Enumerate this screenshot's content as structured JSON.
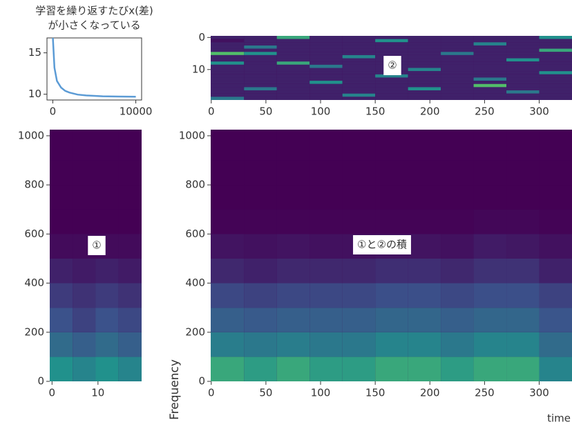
{
  "chart_data": [
    {
      "type": "line",
      "title": [
        "学習を繰り返すたびx(差)",
        "が小さくなっている"
      ],
      "x": [
        0,
        200,
        500,
        1000,
        1500,
        2000,
        3000,
        4000,
        6000,
        8000,
        10000
      ],
      "values": [
        17,
        13.2,
        11.6,
        10.8,
        10.4,
        10.2,
        9.95,
        9.85,
        9.75,
        9.72,
        9.7
      ],
      "color": "#5b9bd5",
      "xlim": [
        -700,
        10700
      ],
      "xticks": [
        0,
        10000
      ],
      "ylim": [
        9.3,
        16.8
      ],
      "yticks": [
        10,
        15
      ]
    },
    {
      "type": "heatmap",
      "annotation": "②",
      "colormap": "viridis",
      "xlim": [
        -0.5,
        330
      ],
      "ylim": [
        19.5,
        -0.5
      ],
      "xticks": [
        0,
        50,
        100,
        150,
        200,
        250,
        300
      ],
      "yticks": [
        0,
        10
      ],
      "x_bins": [
        -0.5,
        30,
        60,
        90,
        120,
        150,
        180,
        210,
        240,
        270,
        300,
        330
      ],
      "y_bins": [
        -0.5,
        0.5,
        1.5,
        2.5,
        3.5,
        4.5,
        5.5,
        6.5,
        7.5,
        8.5,
        9.5,
        10.5,
        11.5,
        12.5,
        13.5,
        14.5,
        15.5,
        16.5,
        17.5,
        18.5,
        19.5
      ],
      "z": [
        [
          0.1,
          0.1,
          0.6,
          0.1,
          0.1,
          0.1,
          0.1,
          0.1,
          0.1,
          0.1,
          0.5
        ],
        [
          0.05,
          0.1,
          0.1,
          0.1,
          0.1,
          0.5,
          0.1,
          0.1,
          0.1,
          0.1,
          0.1
        ],
        [
          0.1,
          0.1,
          0.1,
          0.1,
          0.1,
          0.1,
          0.1,
          0.1,
          0.45,
          0.1,
          0.1
        ],
        [
          0.1,
          0.4,
          0.1,
          0.1,
          0.1,
          0.1,
          0.1,
          0.1,
          0.1,
          0.1,
          0.1
        ],
        [
          0.1,
          0.1,
          0.1,
          0.1,
          0.1,
          0.1,
          0.1,
          0.1,
          0.1,
          0.1,
          0.6
        ],
        [
          0.7,
          0.5,
          0.1,
          0.1,
          0.1,
          0.1,
          0.1,
          0.4,
          0.1,
          0.1,
          0.1
        ],
        [
          0.1,
          0.1,
          0.1,
          0.1,
          0.45,
          0.1,
          0.1,
          0.1,
          0.1,
          0.1,
          0.1
        ],
        [
          0.1,
          0.1,
          0.1,
          0.1,
          0.1,
          0.1,
          0.1,
          0.1,
          0.1,
          0.5,
          0.1
        ],
        [
          0.5,
          0.1,
          0.6,
          0.1,
          0.1,
          0.1,
          0.1,
          0.1,
          0.1,
          0.1,
          0.1
        ],
        [
          0.1,
          0.1,
          0.1,
          0.4,
          0.1,
          0.1,
          0.1,
          0.1,
          0.1,
          0.1,
          0.1
        ],
        [
          0.1,
          0.1,
          0.1,
          0.1,
          0.1,
          0.1,
          0.45,
          0.1,
          0.1,
          0.1,
          0.1
        ],
        [
          0.1,
          0.1,
          0.1,
          0.1,
          0.1,
          0.1,
          0.1,
          0.1,
          0.1,
          0.1,
          0.5
        ],
        [
          0.1,
          0.1,
          0.1,
          0.1,
          0.1,
          0.45,
          0.1,
          0.1,
          0.1,
          0.1,
          0.1
        ],
        [
          0.1,
          0.1,
          0.1,
          0.1,
          0.1,
          0.1,
          0.1,
          0.1,
          0.4,
          0.1,
          0.1
        ],
        [
          0.1,
          0.1,
          0.1,
          0.5,
          0.1,
          0.1,
          0.1,
          0.1,
          0.1,
          0.1,
          0.1
        ],
        [
          0.1,
          0.1,
          0.1,
          0.1,
          0.1,
          0.1,
          0.1,
          0.1,
          0.7,
          0.1,
          0.1
        ],
        [
          0.1,
          0.4,
          0.1,
          0.1,
          0.1,
          0.1,
          0.5,
          0.1,
          0.1,
          0.1,
          0.1
        ],
        [
          0.1,
          0.1,
          0.1,
          0.1,
          0.1,
          0.1,
          0.1,
          0.1,
          0.1,
          0.4,
          0.1
        ],
        [
          0.1,
          0.1,
          0.1,
          0.1,
          0.45,
          0.1,
          0.1,
          0.1,
          0.1,
          0.1,
          0.1
        ],
        [
          0.4,
          0.1,
          0.1,
          0.1,
          0.1,
          0.1,
          0.1,
          0.1,
          0.1,
          0.1,
          0.1
        ]
      ]
    },
    {
      "type": "heatmap",
      "annotation": "①",
      "colormap": "viridis",
      "xlim": [
        -0.5,
        19.5
      ],
      "ylim": [
        0,
        1025
      ],
      "xticks": [
        0,
        10
      ],
      "yticks": [
        0,
        200,
        400,
        600,
        800,
        1000
      ],
      "x_bins": [
        -0.5,
        4.5,
        9.5,
        14.5,
        19.5
      ],
      "y_bins": [
        0,
        100,
        200,
        300,
        400,
        500,
        600,
        700,
        800,
        900,
        1025
      ],
      "z": [
        [
          0.5,
          0.45,
          0.5,
          0.45
        ],
        [
          0.35,
          0.3,
          0.35,
          0.3
        ],
        [
          0.25,
          0.2,
          0.25,
          0.22
        ],
        [
          0.18,
          0.15,
          0.18,
          0.15
        ],
        [
          0.1,
          0.08,
          0.1,
          0.08
        ],
        [
          0.03,
          0.03,
          0.03,
          0.03
        ],
        [
          0,
          0,
          0,
          0
        ],
        [
          0,
          0,
          0,
          0
        ],
        [
          0,
          0,
          0,
          0
        ],
        [
          0,
          0,
          0,
          0
        ]
      ]
    },
    {
      "type": "heatmap",
      "annotation": "①と②の積",
      "colormap": "viridis",
      "xlabel": "time",
      "ylabel": "Frequency",
      "xlim": [
        -0.5,
        330
      ],
      "ylim": [
        0,
        1025
      ],
      "xticks": [
        0,
        50,
        100,
        150,
        200,
        250,
        300
      ],
      "yticks": [
        0,
        200,
        400,
        600,
        800,
        1000
      ],
      "x_bins": [
        -0.5,
        30,
        60,
        90,
        120,
        150,
        180,
        210,
        240,
        270,
        300,
        330
      ],
      "y_bins": [
        0,
        100,
        200,
        300,
        400,
        500,
        600,
        700,
        800,
        900,
        1025
      ],
      "z": [
        [
          0.6,
          0.55,
          0.6,
          0.55,
          0.55,
          0.6,
          0.6,
          0.55,
          0.6,
          0.6,
          0.45
        ],
        [
          0.42,
          0.4,
          0.42,
          0.4,
          0.4,
          0.45,
          0.45,
          0.4,
          0.45,
          0.45,
          0.35
        ],
        [
          0.3,
          0.28,
          0.3,
          0.3,
          0.3,
          0.33,
          0.33,
          0.3,
          0.33,
          0.33,
          0.26
        ],
        [
          0.22,
          0.2,
          0.22,
          0.22,
          0.22,
          0.24,
          0.24,
          0.22,
          0.24,
          0.24,
          0.2
        ],
        [
          0.12,
          0.1,
          0.12,
          0.12,
          0.12,
          0.14,
          0.14,
          0.12,
          0.15,
          0.15,
          0.1
        ],
        [
          0.06,
          0.05,
          0.06,
          0.05,
          0.05,
          0.06,
          0.06,
          0.05,
          0.08,
          0.07,
          0.05
        ],
        [
          0.01,
          0.01,
          0.01,
          0.01,
          0.01,
          0.01,
          0.01,
          0.01,
          0.02,
          0.02,
          0.01
        ],
        [
          0,
          0,
          0,
          0,
          0,
          0,
          0,
          0,
          0,
          0,
          0
        ],
        [
          0,
          0,
          0,
          0,
          0,
          0,
          0,
          0,
          0,
          0,
          0
        ],
        [
          0,
          0,
          0,
          0,
          0,
          0,
          0,
          0,
          0,
          0,
          0
        ]
      ]
    }
  ]
}
